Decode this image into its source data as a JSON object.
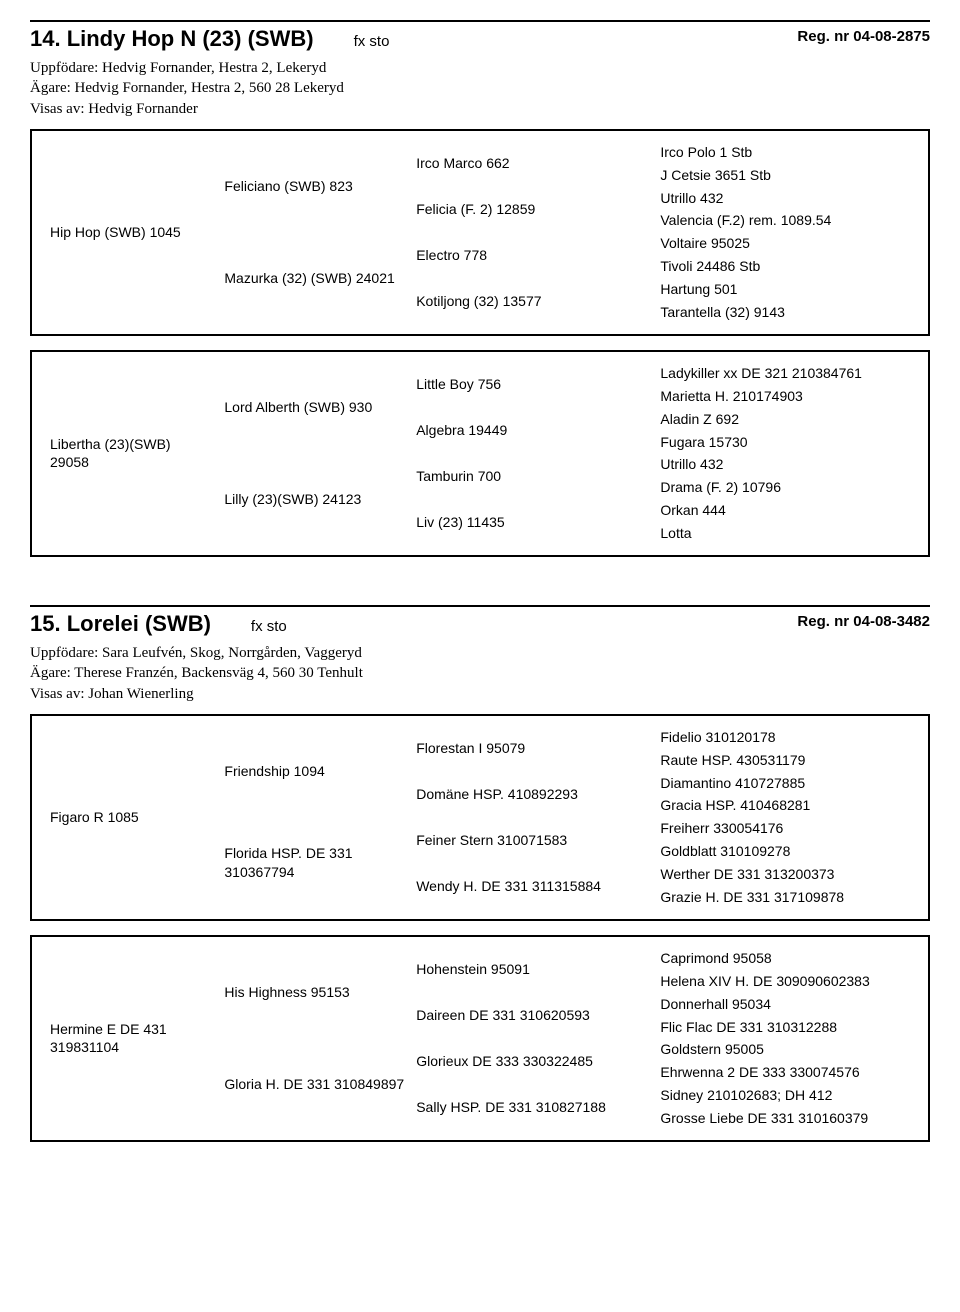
{
  "entries": [
    {
      "number": "14.",
      "name": "Lindy Hop N (23) (SWB)",
      "subtitle": "fx sto",
      "reg": "Reg. nr 04-08-2875",
      "people": [
        "Uppfödare: Hedvig Fornander, Hestra 2, Lekeryd",
        "Ägare: Hedvig Fornander, Hestra 2, 560 28 Lekeryd",
        "Visas av: Hedvig Fornander"
      ],
      "pedigree": {
        "sire": {
          "name": "Hip Hop (SWB) 1045",
          "sire": {
            "name": "Feliciano (SWB) 823",
            "sire": {
              "name": "Irco Marco 662",
              "sire": "Irco Polo 1 Stb",
              "dam": "J Cetsie 3651 Stb"
            },
            "dam": {
              "name": "Felicia (F. 2) 12859",
              "sire": "Utrillo 432",
              "dam": "Valencia (F.2) rem. 1089.54"
            }
          },
          "dam": {
            "name": "Mazurka (32) (SWB) 24021",
            "sire": {
              "name": "Electro 778",
              "sire": "Voltaire 95025",
              "dam": "Tivoli 24486 Stb"
            },
            "dam": {
              "name": "Kotiljong (32) 13577",
              "sire": "Hartung 501",
              "dam": "Tarantella (32) 9143"
            }
          }
        },
        "dam": {
          "name": "Libertha (23)(SWB) 29058",
          "sire": {
            "name": "Lord Alberth (SWB) 930",
            "sire": {
              "name": "Little Boy 756",
              "sire": "Ladykiller xx DE 321 210384761",
              "dam": "Marietta H. 210174903"
            },
            "dam": {
              "name": "Algebra 19449",
              "sire": "Aladin Z 692",
              "dam": "Fugara 15730"
            }
          },
          "dam": {
            "name": "Lilly (23)(SWB) 24123",
            "sire": {
              "name": "Tamburin 700",
              "sire": "Utrillo 432",
              "dam": "Drama (F. 2) 10796"
            },
            "dam": {
              "name": "Liv (23) 11435",
              "sire": "Orkan 444",
              "dam": "Lotta"
            }
          }
        }
      }
    },
    {
      "number": "15.",
      "name": "Lorelei (SWB)",
      "subtitle": "fx sto",
      "reg": "Reg. nr 04-08-3482",
      "people": [
        "Uppfödare: Sara Leufvén, Skog, Norrgården, Vaggeryd",
        "Ägare: Therese Franzén, Backensväg 4, 560 30 Tenhult",
        "Visas av: Johan Wienerling"
      ],
      "pedigree": {
        "sire": {
          "name": "Figaro R 1085",
          "sire": {
            "name": "Friendship 1094",
            "sire": {
              "name": "Florestan I 95079",
              "sire": "Fidelio 310120178",
              "dam": "Raute HSP. 430531179"
            },
            "dam": {
              "name": "Domäne HSP. 410892293",
              "sire": "Diamantino 410727885",
              "dam": "Gracia HSP. 410468281"
            }
          },
          "dam": {
            "name": "Florida HSP. DE 331 310367794",
            "sire": {
              "name": "Feiner Stern 310071583",
              "sire": "Freiherr 330054176",
              "dam": "Goldblatt 310109278"
            },
            "dam": {
              "name": "Wendy H. DE 331 311315884",
              "sire": "Werther DE 331 313200373",
              "dam": "Grazie H. DE 331 317109878"
            }
          }
        },
        "dam": {
          "name": "Hermine E DE 431 319831104",
          "sire": {
            "name": "His Highness 95153",
            "sire": {
              "name": "Hohenstein 95091",
              "sire": "Caprimond 95058",
              "dam": "Helena XIV H. DE 309090602383"
            },
            "dam": {
              "name": "Daireen DE 331 310620593",
              "sire": "Donnerhall 95034",
              "dam": "Flic Flac DE 331 310312288"
            }
          },
          "dam": {
            "name": "Gloria H. DE 331 310849897",
            "sire": {
              "name": "Glorieux DE 333 330322485",
              "sire": "Goldstern 95005",
              "dam": "Ehrwenna 2 DE 333 330074576"
            },
            "dam": {
              "name": "Sally HSP. DE 331 310827188",
              "sire": "Sidney 210102683; DH 412",
              "dam": "Grosse Liebe DE 331 310160379"
            }
          }
        }
      }
    }
  ]
}
